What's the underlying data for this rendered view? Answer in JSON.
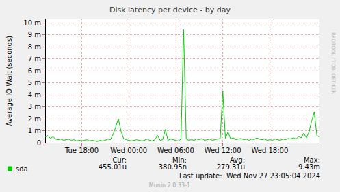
{
  "chart_data": {
    "type": "line",
    "title": "Disk latency per device - by day",
    "y_label": "Average IO Wait (seconds)",
    "watermark": "RRDTOOL / TOBI OETIKER",
    "last_update": "Last update:  Wed Nov 27 23:05:04 2024",
    "footer": "Munin 2.0.33-1",
    "stats": [
      {
        "label": "Cur:",
        "text": "455.01u"
      },
      {
        "label": "Min:",
        "text": "380.95n"
      },
      {
        "label": "Avg:",
        "text": "279.31u"
      },
      {
        "label": "Max:",
        "text": "9.43m"
      }
    ],
    "categories": [
      null,
      null,
      null,
      null,
      null,
      null,
      null,
      null,
      null,
      null,
      null,
      null,
      null,
      null,
      "Tue 18:00",
      null,
      null,
      null,
      null,
      null,
      null,
      null,
      null,
      null,
      null,
      null,
      null,
      null,
      null,
      null,
      null,
      null,
      "Wed 00:00",
      null,
      null,
      null,
      null,
      null,
      null,
      null,
      null,
      null,
      null,
      null,
      null,
      null,
      null,
      null,
      null,
      null,
      "Wed 06:00",
      null,
      null,
      null,
      null,
      null,
      null,
      null,
      null,
      null,
      null,
      null,
      null,
      null,
      null,
      null,
      null,
      null,
      "Wed 12:00",
      null,
      null,
      null,
      null,
      null,
      null,
      null,
      null,
      null,
      null,
      null,
      null,
      null,
      null,
      null,
      null,
      null,
      "Wed 18:00",
      null,
      null,
      null,
      null,
      null,
      null,
      null,
      null,
      null,
      null,
      null,
      null,
      null,
      null,
      null,
      null,
      null,
      null,
      null
    ],
    "series": [
      {
        "name": "sda",
        "color": "#00cc00",
        "values": [
          0.00045,
          0.0006,
          0.00035,
          0.0005,
          0.0003,
          0.00025,
          0.0003,
          0.0002,
          0.00025,
          0.0003,
          0.0002,
          0.00025,
          0.00015,
          0.0002,
          0.00015,
          0.0002,
          0.00025,
          0.00015,
          0.0002,
          0.00015,
          0.0001,
          0.0002,
          0.00015,
          0.0002,
          0.0003,
          0.00025,
          0.0007,
          0.0013,
          0.002,
          0.001,
          0.00035,
          0.00025,
          0.0002,
          0.00015,
          0.0002,
          0.00025,
          0.0002,
          0.00015,
          0.0002,
          0.0003,
          0.0002,
          0.00015,
          0.00025,
          0.0006,
          0.0002,
          0.00025,
          0.0011,
          0.0002,
          0.0003,
          0.00025,
          0.0002,
          0.00015,
          0.0003,
          0.00943,
          0.0003,
          0.0002,
          0.00025,
          0.0002,
          0.0003,
          0.00025,
          0.00035,
          0.0002,
          0.00025,
          0.0003,
          0.0002,
          0.00025,
          0.0003,
          0.00035,
          0.0043,
          0.00035,
          0.0009,
          0.0003,
          0.0004,
          0.00025,
          0.0003,
          0.00035,
          0.00025,
          0.0003,
          0.0002,
          0.0003,
          0.00025,
          0.0004,
          0.0003,
          0.00025,
          0.0003,
          0.0002,
          0.00025,
          0.0002,
          0.0003,
          0.00025,
          0.0002,
          0.0003,
          0.00025,
          0.00035,
          0.0003,
          0.0004,
          0.0003,
          0.0005,
          0.0004,
          0.0008,
          0.0004,
          0.0009,
          0.0018,
          0.00255,
          0.0006,
          0.00046
        ]
      }
    ],
    "ylim": [
      0,
      0.0103
    ],
    "yticks": [
      0,
      {
        "value": 0.001,
        "label": "1 m"
      },
      {
        "value": 0.002,
        "label": "2 m"
      },
      {
        "value": 0.003,
        "label": "3 m"
      },
      {
        "value": 0.004,
        "label": "4 m"
      },
      {
        "value": 0.005,
        "label": "5 m"
      },
      {
        "value": 0.006,
        "label": "6 m"
      },
      {
        "value": 0.007,
        "label": "7 m"
      },
      {
        "value": 0.008,
        "label": "8 m"
      },
      {
        "value": 0.009,
        "label": "9 m"
      },
      {
        "value": 0.01,
        "label": "10 m"
      }
    ],
    "grid": true,
    "legend": "lower left"
  }
}
